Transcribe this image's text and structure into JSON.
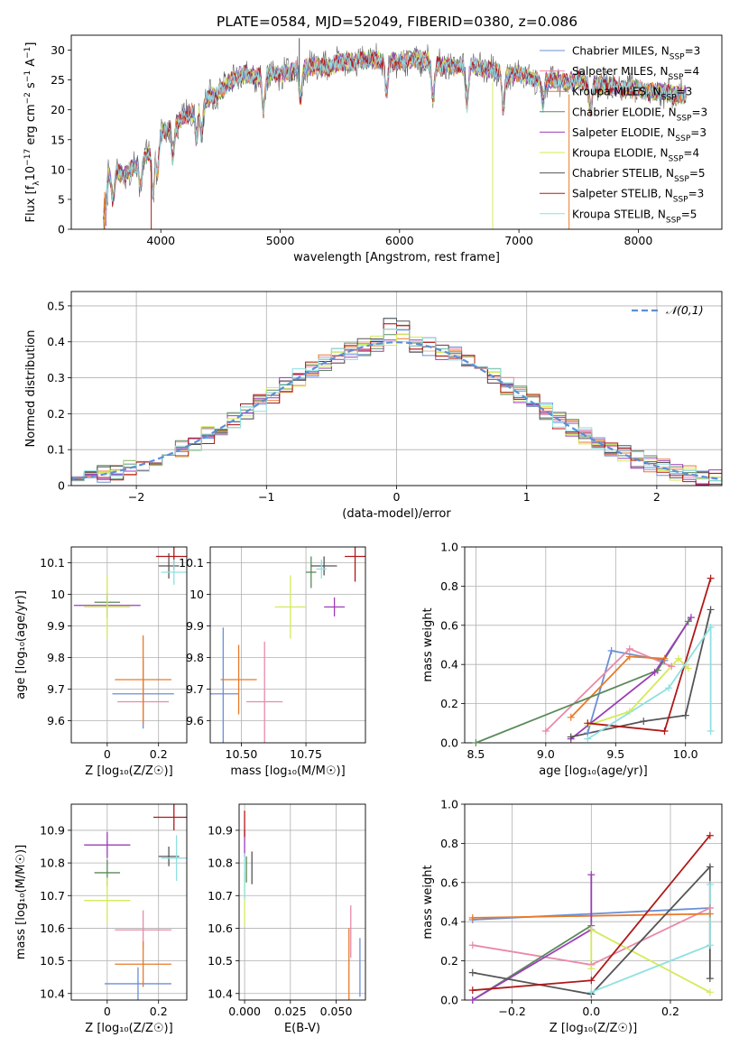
{
  "figure": {
    "title": "PLATE=0584, MJD=52049, FIBERID=0380, z=0.086"
  },
  "legend": [
    {
      "label": "Chabrier MILES, N",
      "sub": "SSP",
      "tail": "=3",
      "color": "#6b8fd6"
    },
    {
      "label": "Salpeter MILES, N",
      "sub": "SSP",
      "tail": "=4",
      "color": "#e88aa8"
    },
    {
      "label": "Kroupa MILES, N",
      "sub": "SSP",
      "tail": "=3",
      "color": "#e87a2a"
    },
    {
      "label": "Chabrier ELODIE, N",
      "sub": "SSP",
      "tail": "=3",
      "color": "#5a8a5a"
    },
    {
      "label": "Salpeter ELODIE, N",
      "sub": "SSP",
      "tail": "=3",
      "color": "#9b3db8"
    },
    {
      "label": "Kroupa ELODIE, N",
      "sub": "SSP",
      "tail": "=4",
      "color": "#d4ea5a"
    },
    {
      "label": "Chabrier STELIB, N",
      "sub": "SSP",
      "tail": "=5",
      "color": "#555555"
    },
    {
      "label": "Salpeter STELIB, N",
      "sub": "SSP",
      "tail": "=3",
      "color": "#b01818"
    },
    {
      "label": "Kroupa STELIB, N",
      "sub": "SSP",
      "tail": "=5",
      "color": "#8fe0e0"
    }
  ],
  "chart_data": [
    {
      "id": "spectrum",
      "type": "line",
      "xlabel": "wavelength [Angstrom, rest frame]",
      "ylabel_parts": [
        "Flux [f",
        "λ",
        "10",
        "−17",
        " erg cm",
        "−2",
        " s",
        "−1",
        " A",
        "−1",
        "]"
      ],
      "xlim": [
        3250,
        8700
      ],
      "ylim": [
        0,
        32.5
      ],
      "xticks": [
        4000,
        5000,
        6000,
        7000,
        8000
      ],
      "yticks": [
        0,
        5,
        10,
        15,
        20,
        25,
        30
      ],
      "envelope": [
        [
          3520,
          8
        ],
        [
          3600,
          10
        ],
        [
          3700,
          9
        ],
        [
          3800,
          11
        ],
        [
          3900,
          13
        ],
        [
          4000,
          16
        ],
        [
          4100,
          17
        ],
        [
          4200,
          19
        ],
        [
          4300,
          20
        ],
        [
          4400,
          22
        ],
        [
          4500,
          23
        ],
        [
          4600,
          25
        ],
        [
          4700,
          26
        ],
        [
          4800,
          25.5
        ],
        [
          4900,
          26
        ],
        [
          5000,
          26
        ],
        [
          5100,
          26.5
        ],
        [
          5200,
          27
        ],
        [
          5300,
          27.5
        ],
        [
          5400,
          27
        ],
        [
          5500,
          28
        ],
        [
          5600,
          28
        ],
        [
          5700,
          28.5
        ],
        [
          5800,
          28.5
        ],
        [
          5900,
          28
        ],
        [
          6000,
          28
        ],
        [
          6100,
          28.5
        ],
        [
          6200,
          28.5
        ],
        [
          6300,
          27.5
        ],
        [
          6400,
          27.5
        ],
        [
          6500,
          27
        ],
        [
          6600,
          27.5
        ],
        [
          6700,
          27
        ],
        [
          6800,
          26.5
        ],
        [
          6900,
          26
        ],
        [
          7000,
          26
        ],
        [
          7100,
          25.5
        ],
        [
          7200,
          25
        ],
        [
          7300,
          25
        ],
        [
          7400,
          24.5
        ],
        [
          7500,
          25
        ],
        [
          7600,
          24.5
        ],
        [
          7700,
          24
        ],
        [
          7800,
          24
        ],
        [
          7900,
          23.5
        ],
        [
          8000,
          23.5
        ],
        [
          8100,
          23
        ],
        [
          8200,
          23
        ],
        [
          8300,
          22.5
        ],
        [
          8400,
          22.5
        ]
      ],
      "dips": [
        [
          3530,
          3.5
        ],
        [
          3600,
          5
        ],
        [
          3830,
          7
        ],
        [
          3935,
          6
        ],
        [
          3970,
          9
        ],
        [
          4100,
          12
        ],
        [
          4300,
          15
        ],
        [
          4340,
          16
        ],
        [
          4860,
          20
        ],
        [
          5170,
          22
        ],
        [
          5890,
          23
        ],
        [
          6280,
          22
        ],
        [
          6565,
          21
        ],
        [
          6870,
          20
        ],
        [
          7200,
          21
        ],
        [
          7600,
          20
        ]
      ],
      "spikes": [
        [
          5160,
          32
        ],
        [
          6780,
          0
        ],
        [
          7420,
          0
        ],
        [
          3920,
          0
        ],
        [
          3530,
          0
        ]
      ]
    },
    {
      "id": "residuals",
      "type": "step-histogram",
      "xlabel": "(data-model)/error",
      "ylabel": "Normed distribution",
      "xlim": [
        -2.5,
        2.5
      ],
      "ylim": [
        0,
        0.54
      ],
      "xticks": [
        -2,
        -1,
        0,
        1,
        2
      ],
      "yticks": [
        0.0,
        0.1,
        0.2,
        0.3,
        0.4,
        0.5
      ],
      "reference": {
        "label": "𝒩(0,1)",
        "mu": 0,
        "sigma": 1
      }
    },
    {
      "id": "age-vs-Z",
      "type": "errorbar",
      "xlabel": "Z [log₁₀(Z/Z☉)]",
      "ylabel": "age  [log₁₀(age/yr)]",
      "xlim": [
        -0.14,
        0.31
      ],
      "ylim": [
        9.53,
        10.15
      ],
      "xticks": [
        0.0,
        0.2
      ],
      "yticks": [
        9.6,
        9.7,
        9.8,
        9.9,
        10.0,
        10.1
      ],
      "points": [
        {
          "x": 0.14,
          "y": 9.685,
          "xerr": 0.12,
          "yerr": 0.11,
          "c": 0
        },
        {
          "x": 0.14,
          "y": 9.66,
          "xerr": 0.1,
          "yerr": 0.07,
          "c": 1
        },
        {
          "x": 0.14,
          "y": 9.73,
          "xerr": 0.11,
          "yerr": 0.14,
          "c": 2
        },
        {
          "x": 0.0,
          "y": 9.975,
          "xerr": 0.05,
          "yerr": 0.02,
          "c": 3
        },
        {
          "x": 0.0,
          "y": 9.965,
          "xerr": 0.13,
          "yerr": 0.04,
          "c": 4
        },
        {
          "x": 0.0,
          "y": 9.96,
          "xerr": 0.09,
          "yerr": 0.1,
          "c": 5
        },
        {
          "x": 0.24,
          "y": 10.09,
          "xerr": 0.04,
          "yerr": 0.04,
          "c": 6
        },
        {
          "x": 0.26,
          "y": 10.12,
          "xerr": 0.07,
          "yerr": 0.04,
          "c": 7
        },
        {
          "x": 0.26,
          "y": 10.07,
          "xerr": 0.05,
          "yerr": 0.04,
          "c": 8
        }
      ]
    },
    {
      "id": "age-vs-mass",
      "type": "errorbar",
      "xlabel": "mass [log₁₀(M/M☉)]",
      "ylabel": "",
      "xlim": [
        10.38,
        10.98
      ],
      "ylim": [
        9.53,
        10.15
      ],
      "xticks": [
        10.5,
        10.75
      ],
      "xticklabels": [
        "10.50",
        "10.75"
      ],
      "yticks": [
        9.6,
        9.7,
        9.8,
        9.9,
        10.0,
        10.1
      ],
      "points": [
        {
          "x": 10.43,
          "y": 9.685,
          "xerr": 0.06,
          "yerr": 0.21,
          "c": 0
        },
        {
          "x": 10.59,
          "y": 9.66,
          "xerr": 0.07,
          "yerr": 0.19,
          "c": 1
        },
        {
          "x": 10.49,
          "y": 9.73,
          "xerr": 0.07,
          "yerr": 0.11,
          "c": 2
        },
        {
          "x": 10.77,
          "y": 10.07,
          "xerr": 0.02,
          "yerr": 0.05,
          "c": 3
        },
        {
          "x": 10.86,
          "y": 9.96,
          "xerr": 0.04,
          "yerr": 0.03,
          "c": 4
        },
        {
          "x": 10.69,
          "y": 9.96,
          "xerr": 0.06,
          "yerr": 0.1,
          "c": 5
        },
        {
          "x": 10.82,
          "y": 10.09,
          "xerr": 0.05,
          "yerr": 0.03,
          "c": 6
        },
        {
          "x": 10.94,
          "y": 10.12,
          "xerr": 0.04,
          "yerr": 0.08,
          "c": 7
        },
        {
          "x": 10.81,
          "y": 10.08,
          "xerr": 0.02,
          "yerr": 0.03,
          "c": 8
        }
      ]
    },
    {
      "id": "mass-weight-vs-age",
      "type": "line",
      "xlabel": "age  [log₁₀(age/yr)]",
      "ylabel": "mass weight",
      "xlim": [
        8.42,
        10.26
      ],
      "ylim": [
        0,
        1.0
      ],
      "xticks": [
        8.5,
        9.0,
        9.5,
        10.0
      ],
      "yticks": [
        0.0,
        0.2,
        0.4,
        0.6,
        0.8,
        1.0
      ],
      "series": [
        {
          "c": 0,
          "x": [
            9.3,
            9.47,
            9.85
          ],
          "y": [
            0.05,
            0.47,
            0.42
          ]
        },
        {
          "c": 1,
          "x": [
            9.0,
            9.6,
            9.9
          ],
          "y": [
            0.06,
            0.48,
            0.39
          ]
        },
        {
          "c": 2,
          "x": [
            9.18,
            9.6,
            9.85
          ],
          "y": [
            0.13,
            0.44,
            0.43
          ]
        },
        {
          "c": 3,
          "x": [
            8.5,
            9.8,
            10.02
          ],
          "y": [
            0.0,
            0.37,
            0.62
          ]
        },
        {
          "c": 4,
          "x": [
            9.18,
            9.78,
            10.04
          ],
          "y": [
            0.02,
            0.36,
            0.64
          ]
        },
        {
          "c": 5,
          "x": [
            9.3,
            9.6,
            9.95,
            10.02
          ],
          "y": [
            0.09,
            0.16,
            0.43,
            0.38
          ]
        },
        {
          "c": 6,
          "x": [
            9.18,
            9.7,
            10.0,
            10.18
          ],
          "y": [
            0.03,
            0.11,
            0.14,
            0.68
          ]
        },
        {
          "c": 7,
          "x": [
            9.3,
            9.85,
            10.18
          ],
          "y": [
            0.1,
            0.06,
            0.84
          ]
        },
        {
          "c": 8,
          "x": [
            9.3,
            9.88,
            10.18,
            10.18
          ],
          "y": [
            0.02,
            0.28,
            0.59,
            0.06
          ]
        }
      ]
    },
    {
      "id": "mass-vs-Z",
      "type": "errorbar",
      "xlabel": "Z [log₁₀(Z/Z☉)]",
      "ylabel": "mass [log₁₀(M/M☉)]",
      "xlim": [
        -0.14,
        0.31
      ],
      "ylim": [
        10.38,
        10.98
      ],
      "xticks": [
        0.0,
        0.2
      ],
      "yticks": [
        10.4,
        10.5,
        10.6,
        10.7,
        10.8,
        10.9
      ],
      "points": [
        {
          "x": 0.12,
          "y": 10.43,
          "xerr": 0.13,
          "yerr": 0.05,
          "c": 0
        },
        {
          "x": 0.14,
          "y": 10.595,
          "xerr": 0.11,
          "yerr": 0.06,
          "c": 1
        },
        {
          "x": 0.14,
          "y": 10.49,
          "xerr": 0.11,
          "yerr": 0.07,
          "c": 2
        },
        {
          "x": 0.0,
          "y": 10.77,
          "xerr": 0.05,
          "yerr": 0.04,
          "c": 3
        },
        {
          "x": 0.0,
          "y": 10.855,
          "xerr": 0.09,
          "yerr": 0.04,
          "c": 4
        },
        {
          "x": 0.0,
          "y": 10.685,
          "xerr": 0.09,
          "yerr": 0.07,
          "c": 5
        },
        {
          "x": 0.24,
          "y": 10.82,
          "xerr": 0.04,
          "yerr": 0.03,
          "c": 6
        },
        {
          "x": 0.26,
          "y": 10.94,
          "xerr": 0.08,
          "yerr": 0.04,
          "c": 7
        },
        {
          "x": 0.27,
          "y": 10.815,
          "xerr": 0.06,
          "yerr": 0.07,
          "c": 8
        }
      ]
    },
    {
      "id": "mass-vs-EBV",
      "type": "errorbar",
      "xlabel": "E(B-V)",
      "ylabel": "",
      "xlim": [
        -0.003,
        0.066
      ],
      "ylim": [
        10.38,
        10.98
      ],
      "xticks": [
        0.0,
        0.025,
        0.05
      ],
      "xticklabels": [
        "0.000",
        "0.025",
        "0.050"
      ],
      "yticks": [
        10.4,
        10.5,
        10.6,
        10.7,
        10.8,
        10.9
      ],
      "points": [
        {
          "x": 0.063,
          "y": 10.48,
          "xerr": 0,
          "yerr": 0.09,
          "c": 0
        },
        {
          "x": 0.058,
          "y": 10.59,
          "xerr": 0,
          "yerr": 0.08,
          "c": 1
        },
        {
          "x": 0.057,
          "y": 10.49,
          "xerr": 0,
          "yerr": 0.11,
          "c": 2
        },
        {
          "x": 0.001,
          "y": 10.78,
          "xerr": 0,
          "yerr": 0.04,
          "c": 3
        },
        {
          "x": 0.0,
          "y": 10.86,
          "xerr": 0,
          "yerr": 0.04,
          "c": 4
        },
        {
          "x": 0.0,
          "y": 10.69,
          "xerr": 0,
          "yerr": 0.08,
          "c": 5
        },
        {
          "x": 0.004,
          "y": 10.785,
          "xerr": 0,
          "yerr": 0.05,
          "c": 6
        },
        {
          "x": 0.0,
          "y": 10.92,
          "xerr": 0,
          "yerr": 0.04,
          "c": 7
        },
        {
          "x": 0.0,
          "y": 10.76,
          "xerr": 0,
          "yerr": 0.07,
          "c": 8
        }
      ]
    },
    {
      "id": "mass-weight-vs-Z",
      "type": "line",
      "xlabel": "Z [log₁₀(Z/Z☉)]",
      "ylabel": "mass weight",
      "xlim": [
        -0.32,
        0.33
      ],
      "ylim": [
        0,
        1.0
      ],
      "xticks": [
        -0.2,
        0.0,
        0.2
      ],
      "yticks": [
        0.0,
        0.2,
        0.4,
        0.6,
        0.8,
        1.0
      ],
      "series": [
        {
          "c": 0,
          "x": [
            -0.3,
            0.3
          ],
          "y": [
            0.41,
            0.47
          ]
        },
        {
          "c": 1,
          "x": [
            -0.3,
            0.0,
            0.3
          ],
          "y": [
            0.28,
            0.18,
            0.47
          ]
        },
        {
          "c": 2,
          "x": [
            -0.3,
            0.3
          ],
          "y": [
            0.42,
            0.44
          ]
        },
        {
          "c": 3,
          "x": [
            -0.3,
            0.0
          ],
          "y": [
            0.0,
            0.38
          ]
        },
        {
          "c": 4,
          "x": [
            -0.3,
            0.0,
            0.0
          ],
          "y": [
            0.0,
            0.36,
            0.64
          ]
        },
        {
          "c": 5,
          "x": [
            0.0,
            0.0,
            0.3
          ],
          "y": [
            0.16,
            0.36,
            0.04
          ]
        },
        {
          "c": 6,
          "x": [
            -0.3,
            0.0,
            0.3,
            0.3
          ],
          "y": [
            0.14,
            0.03,
            0.68,
            0.11
          ]
        },
        {
          "c": 7,
          "x": [
            -0.3,
            0.0,
            0.3
          ],
          "y": [
            0.05,
            0.1,
            0.84
          ]
        },
        {
          "c": 8,
          "x": [
            0.0,
            0.3,
            0.3
          ],
          "y": [
            0.04,
            0.28,
            0.59
          ]
        }
      ]
    }
  ]
}
